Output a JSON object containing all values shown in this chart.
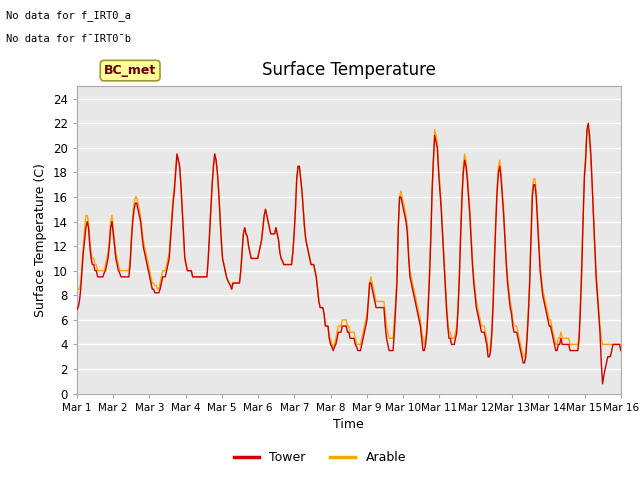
{
  "title": "Surface Temperature",
  "xlabel": "Time",
  "ylabel": "Surface Temperature (C)",
  "ylim": [
    0,
    25
  ],
  "yticks": [
    0,
    2,
    4,
    6,
    8,
    10,
    12,
    14,
    16,
    18,
    20,
    22,
    24
  ],
  "xtick_labels": [
    "Mar 1",
    "Mar 2",
    "Mar 3",
    "Mar 4",
    "Mar 5",
    "Mar 6",
    "Mar 7",
    "Mar 8",
    "Mar 9",
    "Mar 10",
    "Mar 11",
    "Mar 12",
    "Mar 13",
    "Mar 14",
    "Mar 15",
    "Mar 16"
  ],
  "tower_color": "#cc0000",
  "arable_color": "#ffa500",
  "legend_entries": [
    "Tower",
    "Arable"
  ],
  "annotation_line1": "No data for f_IRT0_a",
  "annotation_line2": "No data for f¯IRT0¯b",
  "bc_met_label": "BC_met",
  "bc_met_bg": "#ffff99",
  "bc_met_border": "#999933",
  "background_color": "#e8e8e8",
  "grid_color": "#ffffff",
  "tower_data": [
    6.8,
    7.0,
    7.5,
    8.5,
    10.0,
    11.5,
    12.5,
    13.5,
    14.0,
    13.5,
    12.0,
    11.0,
    10.5,
    10.5,
    10.0,
    10.0,
    9.5,
    9.5,
    9.5,
    9.5,
    9.5,
    9.8,
    10.0,
    10.5,
    11.0,
    12.0,
    13.5,
    14.0,
    13.0,
    12.0,
    11.0,
    10.5,
    10.0,
    9.8,
    9.5,
    9.5,
    9.5,
    9.5,
    9.5,
    9.5,
    9.5,
    10.5,
    12.5,
    14.0,
    15.0,
    15.5,
    15.5,
    15.0,
    14.5,
    14.0,
    13.0,
    12.0,
    11.5,
    11.0,
    10.5,
    10.0,
    9.5,
    9.0,
    8.5,
    8.5,
    8.2,
    8.2,
    8.2,
    8.2,
    8.5,
    9.0,
    9.5,
    9.5,
    9.5,
    10.0,
    10.5,
    11.0,
    12.5,
    14.0,
    15.5,
    16.5,
    18.0,
    19.5,
    19.0,
    18.5,
    17.0,
    15.0,
    13.0,
    11.0,
    10.5,
    10.0,
    10.0,
    10.0,
    10.0,
    9.5,
    9.5,
    9.5,
    9.5,
    9.5,
    9.5,
    9.5,
    9.5,
    9.5,
    9.5,
    9.5,
    9.5,
    11.0,
    13.0,
    15.0,
    17.0,
    18.5,
    19.5,
    19.0,
    18.0,
    16.5,
    14.5,
    12.5,
    11.0,
    10.5,
    10.0,
    9.5,
    9.2,
    9.0,
    8.8,
    8.5,
    9.0,
    9.0,
    9.0,
    9.0,
    9.0,
    9.0,
    10.0,
    11.5,
    13.0,
    13.5,
    13.0,
    12.8,
    12.0,
    11.5,
    11.0,
    11.0,
    11.0,
    11.0,
    11.0,
    11.0,
    11.5,
    12.0,
    12.5,
    13.5,
    14.5,
    15.0,
    14.5,
    14.0,
    13.5,
    13.0,
    13.0,
    13.0,
    13.0,
    13.5,
    13.0,
    12.5,
    11.5,
    11.0,
    10.8,
    10.5,
    10.5,
    10.5,
    10.5,
    10.5,
    10.5,
    10.5,
    11.5,
    13.0,
    15.0,
    17.5,
    18.5,
    18.5,
    17.5,
    16.5,
    15.0,
    13.5,
    12.5,
    12.0,
    11.5,
    11.0,
    10.5,
    10.5,
    10.5,
    10.0,
    9.5,
    8.5,
    7.5,
    7.0,
    7.0,
    7.0,
    6.5,
    5.5,
    5.5,
    5.5,
    4.5,
    4.0,
    3.8,
    3.5,
    3.8,
    4.0,
    4.5,
    5.0,
    5.0,
    5.0,
    5.5,
    5.5,
    5.5,
    5.5,
    5.0,
    5.0,
    4.5,
    4.5,
    4.5,
    4.5,
    4.0,
    3.8,
    3.5,
    3.5,
    3.5,
    4.0,
    4.5,
    5.0,
    5.5,
    6.0,
    7.5,
    9.0,
    9.0,
    8.5,
    8.0,
    7.5,
    7.0,
    7.0,
    7.0,
    7.0,
    7.0,
    7.0,
    7.0,
    5.5,
    4.5,
    4.0,
    3.5,
    3.5,
    3.5,
    3.5,
    5.0,
    7.0,
    9.0,
    13.5,
    16.0,
    16.0,
    15.5,
    15.0,
    14.5,
    14.0,
    13.0,
    11.0,
    9.5,
    9.0,
    8.5,
    8.0,
    7.5,
    7.0,
    6.5,
    6.0,
    5.5,
    4.5,
    3.5,
    3.5,
    4.0,
    5.0,
    7.0,
    9.5,
    12.5,
    16.5,
    19.0,
    21.0,
    20.5,
    20.0,
    18.0,
    16.5,
    15.0,
    13.0,
    11.0,
    9.0,
    7.0,
    5.5,
    4.5,
    4.5,
    4.0,
    4.0,
    4.0,
    4.5,
    5.0,
    7.0,
    9.5,
    13.0,
    16.0,
    18.0,
    19.0,
    18.5,
    17.5,
    16.0,
    14.5,
    12.5,
    10.5,
    9.0,
    8.0,
    7.0,
    6.5,
    6.0,
    5.5,
    5.0,
    5.0,
    5.0,
    4.5,
    4.0,
    3.0,
    3.0,
    3.5,
    5.0,
    7.5,
    11.0,
    14.0,
    16.5,
    18.0,
    18.5,
    17.5,
    16.0,
    14.5,
    12.5,
    10.5,
    9.0,
    8.0,
    7.0,
    6.5,
    5.5,
    5.0,
    5.0,
    5.0,
    4.5,
    4.0,
    3.5,
    3.0,
    2.5,
    2.5,
    3.0,
    4.5,
    6.5,
    9.0,
    12.5,
    16.0,
    17.0,
    17.0,
    16.0,
    14.0,
    12.0,
    10.0,
    9.0,
    8.0,
    7.5,
    7.0,
    6.5,
    6.0,
    5.5,
    5.5,
    5.0,
    4.5,
    4.0,
    3.5,
    3.5,
    4.0,
    4.0,
    4.5,
    4.0,
    4.0,
    4.0,
    4.0,
    4.0,
    4.0,
    3.5,
    3.5,
    3.5,
    3.5,
    3.5,
    3.5,
    3.5,
    4.5,
    7.0,
    10.0,
    14.0,
    17.5,
    19.0,
    21.5,
    22.0,
    21.0,
    19.5,
    17.0,
    14.5,
    12.0,
    9.5,
    8.0,
    6.5,
    5.0,
    2.5,
    0.8,
    1.5,
    2.0,
    2.5,
    3.0,
    3.0,
    3.0,
    3.5,
    4.0,
    4.0,
    4.0,
    4.0,
    4.0,
    4.0,
    3.5
  ],
  "arable_data": [
    8.5,
    8.5,
    8.5,
    9.0,
    10.5,
    12.0,
    13.5,
    14.5,
    14.5,
    14.0,
    12.5,
    11.5,
    11.0,
    11.0,
    10.5,
    10.5,
    10.0,
    10.0,
    10.0,
    10.0,
    10.0,
    10.0,
    10.5,
    11.0,
    11.5,
    12.5,
    14.0,
    14.5,
    13.5,
    12.5,
    11.5,
    11.0,
    10.5,
    10.0,
    10.0,
    10.0,
    10.0,
    10.0,
    10.0,
    10.0,
    10.0,
    11.0,
    13.0,
    14.5,
    15.5,
    16.0,
    16.0,
    15.5,
    15.0,
    14.5,
    13.5,
    12.5,
    12.0,
    11.5,
    11.0,
    10.5,
    10.0,
    9.5,
    9.0,
    9.0,
    8.8,
    8.8,
    8.5,
    8.5,
    9.0,
    9.5,
    10.0,
    10.0,
    10.0,
    10.5,
    11.0,
    11.5,
    13.0,
    14.5,
    16.0,
    17.0,
    18.5,
    19.5,
    19.0,
    18.5,
    17.0,
    15.0,
    13.0,
    11.0,
    10.5,
    10.0,
    10.0,
    10.0,
    10.0,
    9.5,
    9.5,
    9.5,
    9.5,
    9.5,
    9.5,
    9.5,
    9.5,
    9.5,
    9.5,
    9.5,
    9.5,
    11.0,
    13.0,
    15.0,
    17.0,
    18.5,
    19.5,
    19.0,
    18.0,
    16.5,
    14.5,
    12.5,
    11.0,
    10.5,
    10.0,
    9.5,
    9.2,
    9.0,
    8.8,
    8.5,
    9.0,
    9.0,
    9.0,
    9.0,
    9.0,
    9.0,
    10.0,
    11.5,
    13.0,
    13.5,
    13.0,
    12.8,
    12.0,
    11.5,
    11.0,
    11.0,
    11.0,
    11.0,
    11.0,
    11.0,
    11.5,
    12.0,
    12.5,
    13.5,
    14.5,
    15.0,
    14.5,
    14.0,
    13.5,
    13.0,
    13.0,
    13.0,
    13.0,
    13.5,
    13.0,
    12.5,
    11.5,
    11.0,
    10.8,
    10.5,
    10.5,
    10.5,
    10.5,
    10.5,
    10.5,
    10.5,
    11.5,
    13.0,
    15.0,
    17.5,
    18.5,
    18.5,
    17.5,
    16.5,
    15.0,
    13.5,
    12.5,
    12.0,
    11.5,
    11.0,
    10.5,
    10.5,
    10.5,
    10.0,
    9.5,
    8.5,
    7.5,
    7.0,
    7.0,
    7.0,
    6.5,
    5.5,
    5.5,
    5.5,
    4.5,
    4.5,
    4.0,
    3.8,
    4.0,
    4.5,
    5.0,
    5.5,
    5.5,
    5.5,
    6.0,
    6.0,
    6.0,
    6.0,
    5.5,
    5.5,
    5.0,
    5.0,
    5.0,
    5.0,
    4.5,
    4.0,
    4.0,
    4.0,
    4.0,
    4.5,
    5.0,
    5.5,
    6.0,
    6.5,
    7.5,
    9.0,
    9.5,
    9.0,
    8.5,
    8.0,
    7.5,
    7.5,
    7.5,
    7.5,
    7.5,
    7.5,
    7.5,
    6.5,
    5.5,
    5.0,
    4.5,
    4.5,
    4.5,
    4.5,
    6.0,
    7.5,
    9.5,
    13.5,
    16.0,
    16.5,
    16.0,
    15.5,
    15.0,
    14.5,
    13.5,
    11.5,
    10.0,
    9.5,
    9.0,
    8.5,
    8.0,
    7.5,
    7.0,
    6.5,
    6.0,
    5.0,
    4.5,
    4.0,
    4.5,
    5.5,
    7.5,
    10.0,
    13.0,
    16.5,
    19.0,
    21.5,
    21.0,
    20.5,
    18.5,
    17.0,
    15.5,
    13.5,
    11.5,
    9.5,
    7.5,
    6.0,
    5.0,
    5.0,
    4.5,
    4.5,
    4.5,
    5.0,
    5.5,
    7.5,
    10.0,
    13.5,
    16.5,
    18.5,
    19.5,
    19.0,
    18.0,
    16.5,
    15.0,
    13.0,
    11.0,
    9.5,
    8.5,
    7.5,
    7.0,
    6.5,
    6.0,
    5.5,
    5.5,
    5.5,
    5.0,
    4.5,
    3.5,
    3.5,
    4.0,
    5.5,
    8.0,
    11.5,
    14.5,
    17.0,
    18.5,
    19.0,
    18.0,
    16.5,
    15.0,
    13.0,
    11.0,
    9.5,
    8.5,
    7.5,
    7.0,
    6.0,
    5.5,
    5.5,
    5.5,
    5.0,
    4.5,
    4.0,
    3.5,
    3.0,
    3.0,
    3.5,
    5.0,
    7.0,
    9.5,
    13.0,
    16.5,
    17.5,
    17.5,
    16.5,
    14.5,
    12.5,
    10.5,
    9.5,
    8.5,
    8.0,
    7.5,
    7.0,
    6.5,
    6.0,
    6.0,
    5.5,
    5.0,
    4.5,
    4.0,
    4.0,
    4.5,
    4.5,
    5.0,
    4.5,
    4.5,
    4.5,
    4.5,
    4.5,
    4.5,
    4.0,
    4.0,
    4.0,
    4.0,
    4.0,
    4.0,
    4.0,
    5.0,
    7.5,
    11.0,
    14.5,
    18.0,
    19.5,
    21.5,
    21.5,
    20.5,
    19.0,
    17.0,
    14.5,
    12.0,
    10.0,
    8.5,
    7.0,
    5.5,
    4.5,
    4.0,
    4.0,
    4.0,
    4.0,
    4.0,
    4.0,
    4.0,
    4.0,
    4.0,
    4.0,
    4.0,
    4.0,
    4.0,
    4.0,
    4.0
  ]
}
